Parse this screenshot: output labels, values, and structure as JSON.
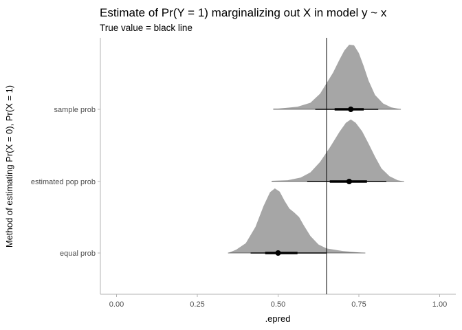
{
  "chart_data": {
    "type": "halfeye",
    "title": "Estimate of Pr(Y = 1) marginalizing out X in model y ~ x",
    "subtitle": "True value = black line",
    "xlabel": ".epred",
    "ylabel": "Method of estimating Pr(X = 0), Pr(X = 1)",
    "xlim": [
      -0.05,
      1.05
    ],
    "x_ticks": [
      0.0,
      0.25,
      0.5,
      0.75,
      1.0
    ],
    "x_tick_labels": [
      "0.00",
      "0.25",
      "0.50",
      "0.75",
      "1.00"
    ],
    "grid": false,
    "reference_line": {
      "x": 0.65,
      "color": "#000000"
    },
    "density_color": "#a6a6a6",
    "interval_color": "#000000",
    "categories": [
      "sample prob",
      "estimated pop prob",
      "equal prob"
    ],
    "series": [
      {
        "category": "sample prob",
        "point": 0.725,
        "interval_66": [
          0.675,
          0.765
        ],
        "interval_95": [
          0.615,
          0.81
        ],
        "range": [
          0.485,
          0.88
        ],
        "density": [
          [
            0.485,
            0.01
          ],
          [
            0.5,
            0.01
          ],
          [
            0.56,
            0.04
          ],
          [
            0.6,
            0.1
          ],
          [
            0.63,
            0.24
          ],
          [
            0.65,
            0.4
          ],
          [
            0.67,
            0.56
          ],
          [
            0.69,
            0.76
          ],
          [
            0.705,
            0.9
          ],
          [
            0.72,
            0.99
          ],
          [
            0.735,
            0.98
          ],
          [
            0.75,
            0.86
          ],
          [
            0.765,
            0.66
          ],
          [
            0.78,
            0.44
          ],
          [
            0.8,
            0.22
          ],
          [
            0.825,
            0.09
          ],
          [
            0.85,
            0.03
          ],
          [
            0.88,
            0.0
          ]
        ]
      },
      {
        "category": "estimated pop prob",
        "point": 0.72,
        "interval_66": [
          0.66,
          0.775
        ],
        "interval_95": [
          0.59,
          0.835
        ],
        "range": [
          0.48,
          0.89
        ],
        "density": [
          [
            0.48,
            0.01
          ],
          [
            0.53,
            0.02
          ],
          [
            0.57,
            0.06
          ],
          [
            0.6,
            0.14
          ],
          [
            0.63,
            0.3
          ],
          [
            0.66,
            0.52
          ],
          [
            0.69,
            0.76
          ],
          [
            0.71,
            0.9
          ],
          [
            0.725,
            0.95
          ],
          [
            0.74,
            0.9
          ],
          [
            0.76,
            0.77
          ],
          [
            0.78,
            0.58
          ],
          [
            0.8,
            0.38
          ],
          [
            0.82,
            0.2
          ],
          [
            0.845,
            0.08
          ],
          [
            0.87,
            0.02
          ],
          [
            0.89,
            0.0
          ]
        ]
      },
      {
        "category": "equal prob",
        "point": 0.5,
        "interval_66": [
          0.46,
          0.56
        ],
        "interval_95": [
          0.415,
          0.65
        ],
        "range": [
          0.345,
          0.77
        ],
        "density": [
          [
            0.345,
            0.0
          ],
          [
            0.37,
            0.05
          ],
          [
            0.4,
            0.15
          ],
          [
            0.43,
            0.4
          ],
          [
            0.455,
            0.72
          ],
          [
            0.475,
            0.93
          ],
          [
            0.49,
            0.99
          ],
          [
            0.505,
            0.94
          ],
          [
            0.52,
            0.8
          ],
          [
            0.535,
            0.68
          ],
          [
            0.55,
            0.62
          ],
          [
            0.565,
            0.55
          ],
          [
            0.58,
            0.42
          ],
          [
            0.6,
            0.26
          ],
          [
            0.625,
            0.13
          ],
          [
            0.65,
            0.07
          ],
          [
            0.7,
            0.03
          ],
          [
            0.77,
            0.0
          ]
        ]
      }
    ]
  }
}
